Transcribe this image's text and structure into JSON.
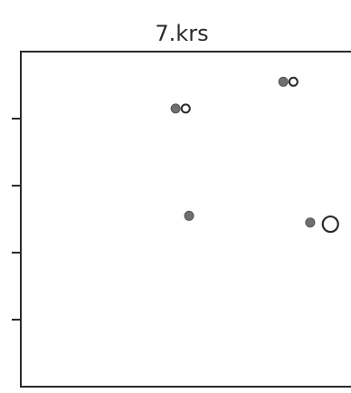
{
  "chart_data": {
    "type": "scatter",
    "title": "7.krs",
    "xlabel": "",
    "ylabel": "",
    "xlim": [
      0,
      10
    ],
    "ylim": [
      0,
      10
    ],
    "grid": false,
    "yticks": [
      2,
      4,
      6,
      8
    ],
    "colors": {
      "filled": "#6f6f6f",
      "stroke": "#2a2a2a",
      "open_fill": "#ffffff"
    },
    "series": [
      {
        "marker": "filled-circle",
        "points": [
          {
            "x": 4.6,
            "y": 8.3
          },
          {
            "x": 7.8,
            "y": 9.1
          },
          {
            "x": 5.0,
            "y": 5.1
          },
          {
            "x": 8.6,
            "y": 4.9
          }
        ]
      },
      {
        "marker": "open-circle",
        "points": [
          {
            "x": 4.9,
            "y": 8.3,
            "size": 1
          },
          {
            "x": 8.1,
            "y": 9.1,
            "size": 1
          },
          {
            "x": 9.2,
            "y": 4.85,
            "size": 2
          }
        ]
      }
    ]
  }
}
